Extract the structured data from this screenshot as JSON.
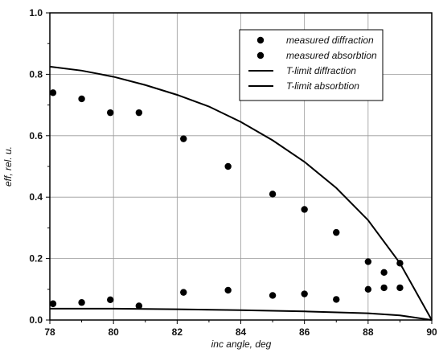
{
  "chart_data": {
    "type": "scatter",
    "title": "",
    "xlabel": "inc angle, deg",
    "ylabel": "eff, rel. u.",
    "xlim": [
      78,
      90
    ],
    "ylim": [
      0.0,
      1.0
    ],
    "x_ticks": [
      "78",
      "80",
      "82",
      "84",
      "86",
      "88",
      "90"
    ],
    "y_ticks": [
      "0.0",
      "0.2",
      "0.4",
      "0.6",
      "0.8",
      "1.0"
    ],
    "grid": true,
    "legend_position": "top-right",
    "series": [
      {
        "name": "measured diffraction",
        "kind": "markers",
        "color": "#000000",
        "points": [
          [
            78.1,
            0.74
          ],
          [
            79.0,
            0.72
          ],
          [
            79.9,
            0.675
          ],
          [
            80.8,
            0.675
          ],
          [
            82.2,
            0.59
          ],
          [
            83.6,
            0.5
          ],
          [
            85.0,
            0.41
          ],
          [
            86.0,
            0.36
          ],
          [
            87.0,
            0.285
          ],
          [
            88.0,
            0.19
          ],
          [
            88.5,
            0.155
          ],
          [
            89.0,
            0.185
          ]
        ]
      },
      {
        "name": "measured absorbtion",
        "kind": "markers",
        "color": "#000000",
        "points": [
          [
            78.1,
            0.053
          ],
          [
            79.0,
            0.057
          ],
          [
            79.9,
            0.066
          ],
          [
            80.8,
            0.046
          ],
          [
            82.2,
            0.09
          ],
          [
            83.6,
            0.097
          ],
          [
            85.0,
            0.08
          ],
          [
            86.0,
            0.085
          ],
          [
            87.0,
            0.067
          ],
          [
            88.0,
            0.1
          ],
          [
            88.5,
            0.105
          ],
          [
            89.0,
            0.105
          ]
        ]
      },
      {
        "name": "T-limit diffraction",
        "kind": "line",
        "color": "#000000",
        "points": [
          [
            78,
            0.825
          ],
          [
            79,
            0.812
          ],
          [
            80,
            0.792
          ],
          [
            81,
            0.765
          ],
          [
            82,
            0.733
          ],
          [
            83,
            0.695
          ],
          [
            84,
            0.645
          ],
          [
            85,
            0.585
          ],
          [
            86,
            0.515
          ],
          [
            87,
            0.43
          ],
          [
            88,
            0.325
          ],
          [
            89,
            0.185
          ],
          [
            90,
            0.0
          ]
        ]
      },
      {
        "name": "T-limit absorbtion",
        "kind": "line",
        "color": "#000000",
        "points": [
          [
            78,
            0.037
          ],
          [
            80,
            0.037
          ],
          [
            82,
            0.035
          ],
          [
            84,
            0.032
          ],
          [
            86,
            0.028
          ],
          [
            88,
            0.022
          ],
          [
            89,
            0.015
          ],
          [
            90,
            0.0
          ]
        ]
      }
    ]
  }
}
